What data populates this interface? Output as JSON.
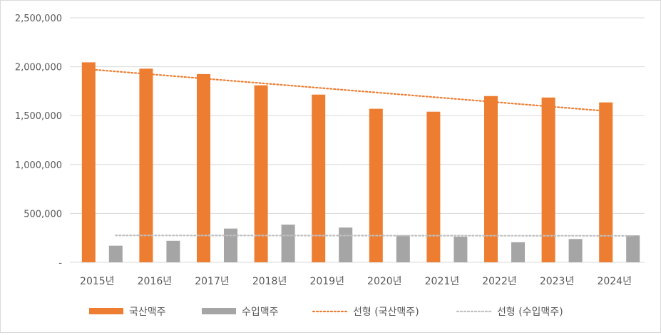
{
  "chart_data": {
    "type": "bar",
    "title": "",
    "xlabel": "",
    "ylabel": "",
    "categories": [
      "2015년",
      "2016년",
      "2017년",
      "2018년",
      "2019년",
      "2020년",
      "2021년",
      "2022년",
      "2023년",
      "2024년"
    ],
    "series": [
      {
        "name": "국산맥주",
        "color": "#ED7D31",
        "values": [
          2045000,
          1980000,
          1925000,
          1810000,
          1715000,
          1570000,
          1540000,
          1700000,
          1685000,
          1635000
        ]
      },
      {
        "name": "수입맥주",
        "color": "#A5A5A5",
        "values": [
          170000,
          220000,
          345000,
          385000,
          355000,
          275000,
          262000,
          205000,
          238000,
          275000
        ]
      }
    ],
    "trendlines": [
      {
        "name": "선형 (국산맥주)",
        "series": "국산맥주",
        "type": "linear",
        "color": "#ED7D31"
      },
      {
        "name": "선형 (수입맥주)",
        "series": "수입맥주",
        "type": "linear",
        "color": "#BFBFBF"
      }
    ],
    "ylim": [
      0,
      2500000
    ],
    "yticks": [
      0,
      500000,
      1000000,
      1500000,
      2000000,
      2500000
    ],
    "ytick_labels": [
      "-",
      "500,000",
      "1,000,000",
      "1,500,000",
      "2,000,000",
      "2,500,000"
    ],
    "grid": true,
    "legend_position": "bottom"
  }
}
